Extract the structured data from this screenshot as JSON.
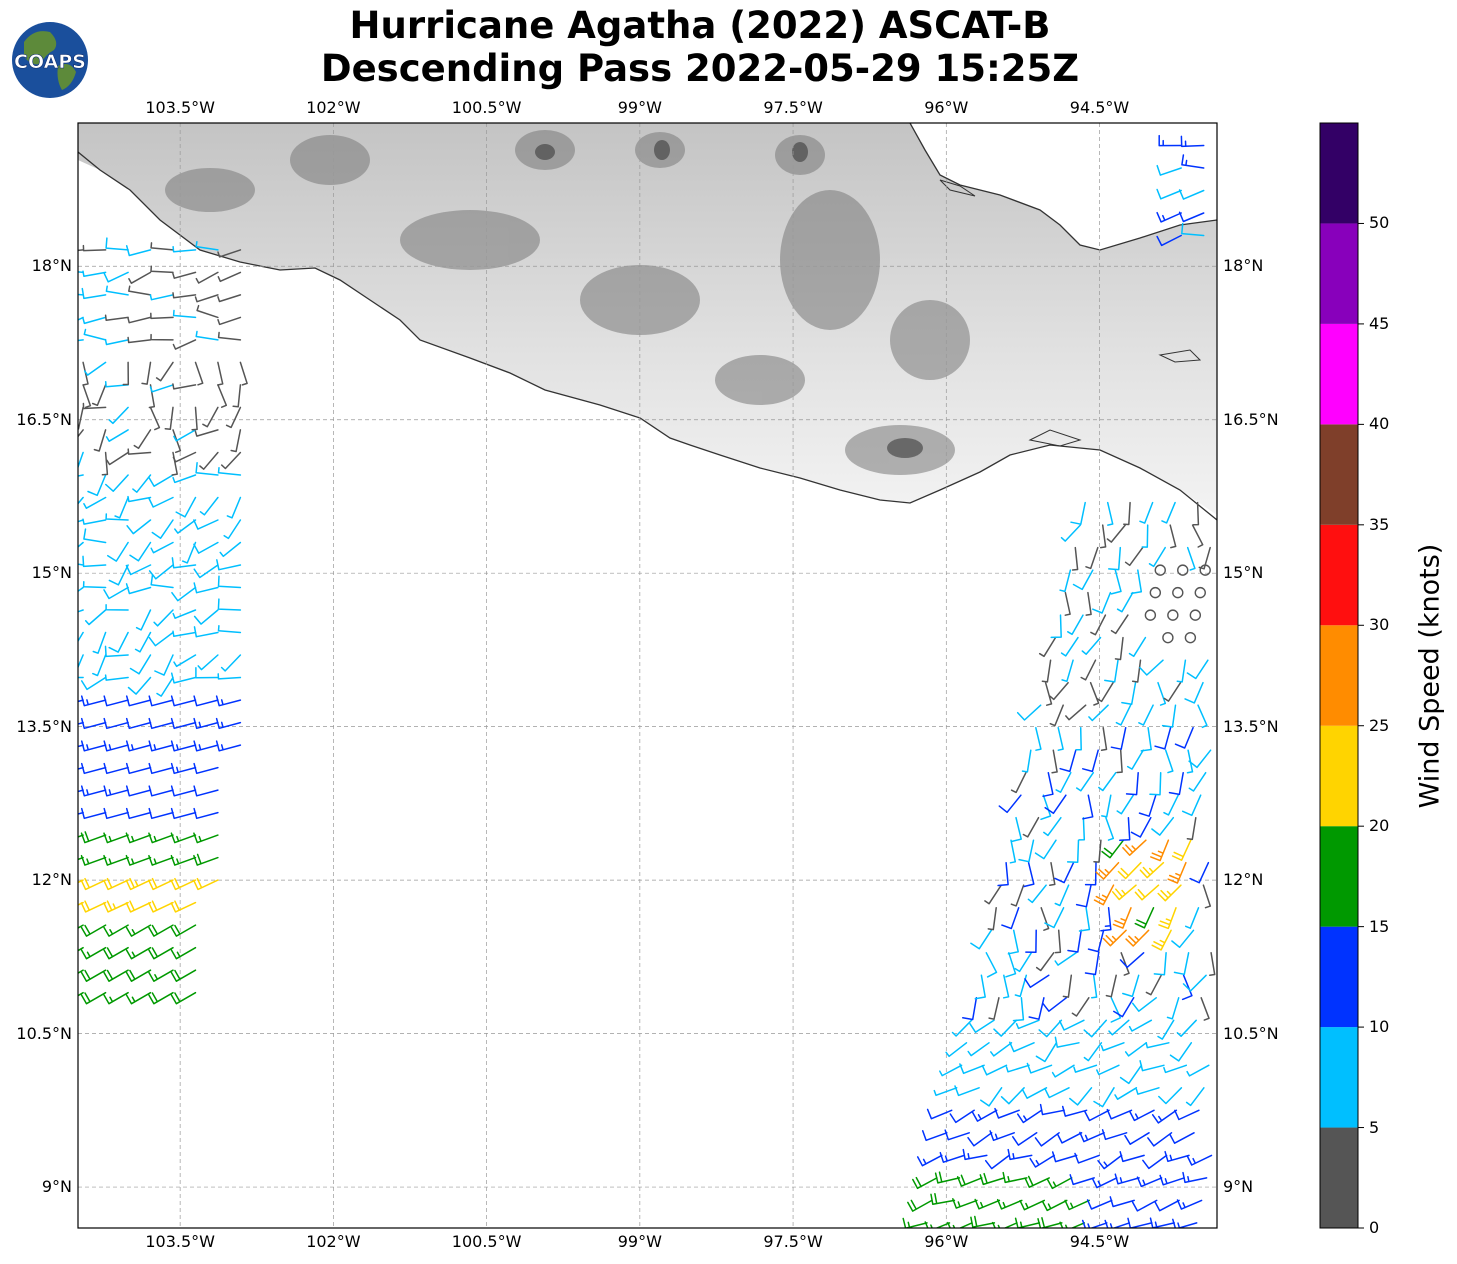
{
  "header": {
    "title_line1": "Hurricane Agatha (2022) ASCAT-B",
    "title_line2": "Descending Pass 2022-05-29 15:25Z",
    "logo_text": "COAPS"
  },
  "map": {
    "lon_ticks": [
      "103.5°W",
      "102°W",
      "100.5°W",
      "99°W",
      "97.5°W",
      "96°W",
      "94.5°W"
    ],
    "lat_ticks": [
      "18°N",
      "16.5°N",
      "15°N",
      "13.5°N",
      "12°N",
      "10.5°N",
      "9°N"
    ],
    "lon_range": [
      -104.5,
      -93.35
    ],
    "lat_range": [
      8.6,
      19.4
    ],
    "gridlines": true,
    "basemap": "grayscale terrain elevation over land, white ocean"
  },
  "colorbar": {
    "label": "Wind Speed (knots)",
    "ticks": [
      "0",
      "5",
      "10",
      "15",
      "20",
      "25",
      "30",
      "35",
      "40",
      "45",
      "50"
    ],
    "bins": [
      {
        "min": 0,
        "max": 5,
        "color": "#555555"
      },
      {
        "min": 5,
        "max": 10,
        "color": "#00bfff"
      },
      {
        "min": 10,
        "max": 15,
        "color": "#0033ff"
      },
      {
        "min": 15,
        "max": 20,
        "color": "#009900"
      },
      {
        "min": 20,
        "max": 25,
        "color": "#ffd400"
      },
      {
        "min": 25,
        "max": 30,
        "color": "#ff8c00"
      },
      {
        "min": 30,
        "max": 35,
        "color": "#ff0f0f"
      },
      {
        "min": 35,
        "max": 40,
        "color": "#7f3f2a"
      },
      {
        "min": 40,
        "max": 45,
        "color": "#ff00ff"
      },
      {
        "min": 45,
        "max": 50,
        "color": "#8800bb"
      },
      {
        "min": 50,
        "max": 55,
        "color": "#330066"
      }
    ]
  },
  "wind_swaths": [
    {
      "name": "west-swath",
      "lon_range": [
        -104.5,
        -102.9
      ],
      "lat_range": [
        10.8,
        18.3
      ],
      "note": "mostly 5-15 kt, 15-25 kt near 11.5-12.5N"
    },
    {
      "name": "east-swath",
      "lon_range": [
        -96.2,
        -93.35
      ],
      "lat_range": [
        8.6,
        15.8
      ],
      "note": "calm circles near 14.5-15N (storm center region), 20-30 kt near 12N"
    }
  ]
}
